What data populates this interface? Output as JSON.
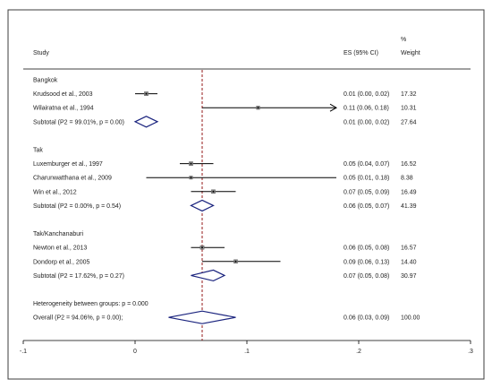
{
  "chart_data": {
    "type": "forest",
    "headers": {
      "study": "Study",
      "es": "ES (95% CI)",
      "pct": "%",
      "weight": "Weight"
    },
    "xlim": [
      -0.1,
      0.3
    ],
    "xticks": [
      {
        "value": -0.1,
        "label": "-.1"
      },
      {
        "value": 0,
        "label": "0"
      },
      {
        "value": 0.1,
        "label": ".1"
      },
      {
        "value": 0.2,
        "label": ".2"
      },
      {
        "value": 0.3,
        "label": ".3"
      }
    ],
    "overall_line": 0.06,
    "rows": [
      {
        "kind": "group",
        "label": "Bangkok"
      },
      {
        "kind": "study",
        "label": "Krudsood et al., 2003",
        "es": 0.01,
        "lo": 0.0,
        "hi": 0.02,
        "ci": "0.01 (0.00, 0.02)",
        "weight": "17.32"
      },
      {
        "kind": "study",
        "label": "Wilairatna et al., 1994",
        "es": 0.11,
        "lo": 0.06,
        "hi": 0.18,
        "ci": "0.11 (0.06, 0.18)",
        "weight": "10.31",
        "arrow": true
      },
      {
        "kind": "subtotal",
        "label": "Subtotal  (P2 = 99.01%, p = 0.00)",
        "es": 0.01,
        "lo": 0.0,
        "hi": 0.02,
        "ci": "0.01 (0.00, 0.02)",
        "weight": "27.64"
      },
      {
        "kind": "spacer"
      },
      {
        "kind": "group",
        "label": "Tak"
      },
      {
        "kind": "study",
        "label": "Luxemburger et al., 1997",
        "es": 0.05,
        "lo": 0.04,
        "hi": 0.07,
        "ci": "0.05 (0.04, 0.07)",
        "weight": "16.52"
      },
      {
        "kind": "study",
        "label": "Charunwatthana et al., 2009",
        "es": 0.05,
        "lo": 0.01,
        "hi": 0.18,
        "ci": "0.05 (0.01, 0.18)",
        "weight": "8.38"
      },
      {
        "kind": "study",
        "label": "Win et al., 2012",
        "es": 0.07,
        "lo": 0.05,
        "hi": 0.09,
        "ci": "0.07 (0.05, 0.09)",
        "weight": "16.49"
      },
      {
        "kind": "subtotal",
        "label": "Subtotal  (P2 = 0.00%, p = 0.54)",
        "es": 0.06,
        "lo": 0.05,
        "hi": 0.07,
        "ci": "0.06 (0.05, 0.07)",
        "weight": "41.39"
      },
      {
        "kind": "spacer"
      },
      {
        "kind": "group",
        "label": "Tak/Kanchanaburi"
      },
      {
        "kind": "study",
        "label": "Newton et al., 2013",
        "es": 0.06,
        "lo": 0.05,
        "hi": 0.08,
        "ci": "0.06 (0.05, 0.08)",
        "weight": "16.57"
      },
      {
        "kind": "study",
        "label": "Dondorp et al., 2005",
        "es": 0.09,
        "lo": 0.06,
        "hi": 0.13,
        "ci": "0.09 (0.06, 0.13)",
        "weight": "14.40"
      },
      {
        "kind": "subtotal",
        "label": "Subtotal  (P2 = 17.62%, p = 0.27)",
        "es": 0.07,
        "lo": 0.05,
        "hi": 0.08,
        "ci": "0.07 (0.05, 0.08)",
        "weight": "30.97"
      },
      {
        "kind": "spacer"
      },
      {
        "kind": "note",
        "label": "Heterogeneity between groups: p = 0.000"
      },
      {
        "kind": "overall",
        "label": "Overall  (P2 = 94.06%, p = 0.00);",
        "es": 0.06,
        "lo": 0.03,
        "hi": 0.09,
        "ci": "0.06 (0.03, 0.09)",
        "weight": "100.00"
      }
    ],
    "colors": {
      "diamond": "#1a237e",
      "refline": "#8b0000",
      "ci": "#000000",
      "box": "#8c8c8c"
    }
  }
}
